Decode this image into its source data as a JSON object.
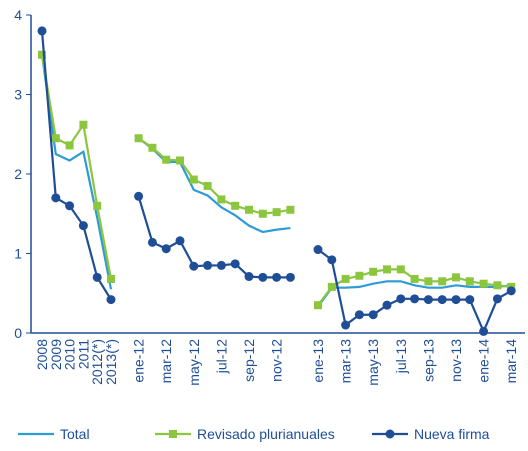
{
  "chart_data": {
    "type": "line",
    "categories": [
      "2008",
      "2009",
      "2010",
      "2011",
      "2012(*)",
      "2013(*)",
      null,
      "ene-12",
      null,
      "mar-12",
      null,
      "may-12",
      null,
      "jul-12",
      null,
      "sep-12",
      null,
      "nov-12",
      null,
      null,
      "ene-13",
      null,
      "mar-13",
      null,
      "may-13",
      null,
      "jul-13",
      null,
      "sep-13",
      null,
      "nov-13",
      null,
      "ene-14",
      null,
      "mar-14"
    ],
    "series": [
      {
        "name": "Total",
        "color": "#2e9bd6",
        "marker": "none",
        "values": [
          3.5,
          2.25,
          2.17,
          2.28,
          1.45,
          0.55,
          null,
          2.45,
          2.32,
          2.15,
          2.15,
          1.8,
          1.73,
          1.58,
          1.48,
          1.35,
          1.27,
          1.3,
          1.32,
          null,
          0.33,
          0.57,
          0.57,
          0.58,
          0.62,
          0.65,
          0.65,
          0.6,
          0.57,
          0.57,
          0.6,
          0.58,
          0.58,
          0.58,
          0.6
        ]
      },
      {
        "name": "Revisado plurianuales",
        "color": "#8cc63f",
        "marker": "square",
        "values": [
          3.5,
          2.45,
          2.36,
          2.62,
          1.6,
          0.68,
          null,
          2.45,
          2.33,
          2.18,
          2.17,
          1.93,
          1.85,
          1.68,
          1.6,
          1.55,
          1.5,
          1.52,
          1.55,
          null,
          0.35,
          0.58,
          0.68,
          0.72,
          0.77,
          0.8,
          0.8,
          0.68,
          0.65,
          0.65,
          0.7,
          0.65,
          0.62,
          0.6,
          0.58
        ]
      },
      {
        "name": "Nueva firma",
        "color": "#1f4e96",
        "marker": "circle",
        "values": [
          3.8,
          1.7,
          1.6,
          1.35,
          0.7,
          0.42,
          null,
          1.72,
          1.14,
          1.06,
          1.16,
          0.84,
          0.85,
          0.85,
          0.87,
          0.71,
          0.7,
          0.7,
          0.7,
          null,
          1.05,
          0.92,
          0.1,
          0.23,
          0.23,
          0.35,
          0.43,
          0.43,
          0.42,
          0.42,
          0.42,
          0.42,
          0.02,
          0.43,
          0.53
        ]
      }
    ],
    "ylim": [
      0,
      4
    ],
    "yticks": [
      0,
      1,
      2,
      3,
      4
    ],
    "grid": false
  }
}
